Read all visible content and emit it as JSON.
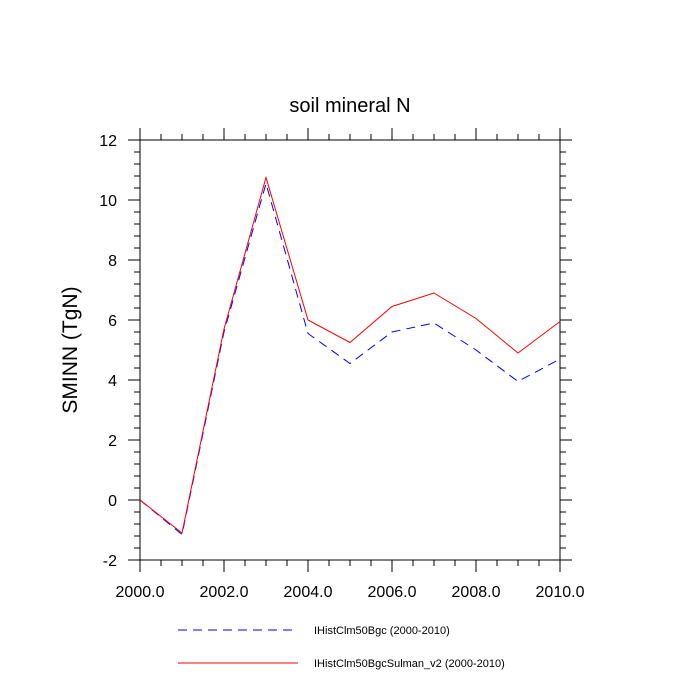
{
  "chart_data": {
    "type": "line",
    "title": "soil mineral N",
    "xlabel": "",
    "ylabel": "SMINN  (TgN)",
    "xlim": [
      2000,
      2010
    ],
    "ylim": [
      -2,
      12
    ],
    "x_ticks": [
      "2000.0",
      "2002.0",
      "2004.0",
      "2006.0",
      "2008.0",
      "2010.0"
    ],
    "y_ticks": [
      "-2",
      "0",
      "2",
      "4",
      "6",
      "8",
      "10",
      "12"
    ],
    "x": [
      2000,
      2001,
      2002,
      2003,
      2004,
      2005,
      2006,
      2007,
      2008,
      2009,
      2010
    ],
    "series": [
      {
        "name": "IHistClm50Bgc (2000-2010)",
        "color": "#0000ff",
        "style": "dashed",
        "values": [
          0.0,
          -1.15,
          5.6,
          10.55,
          5.55,
          4.55,
          5.6,
          5.9,
          5.0,
          3.95,
          4.7
        ]
      },
      {
        "name": "IHistClm50BgcSulman_v2 (2000-2010)",
        "color": "#ff0000",
        "style": "solid",
        "values": [
          0.0,
          -1.1,
          5.7,
          10.75,
          6.0,
          5.25,
          6.45,
          6.9,
          6.05,
          4.9,
          5.95
        ]
      }
    ],
    "legend_position": "bottom",
    "grid": false
  }
}
